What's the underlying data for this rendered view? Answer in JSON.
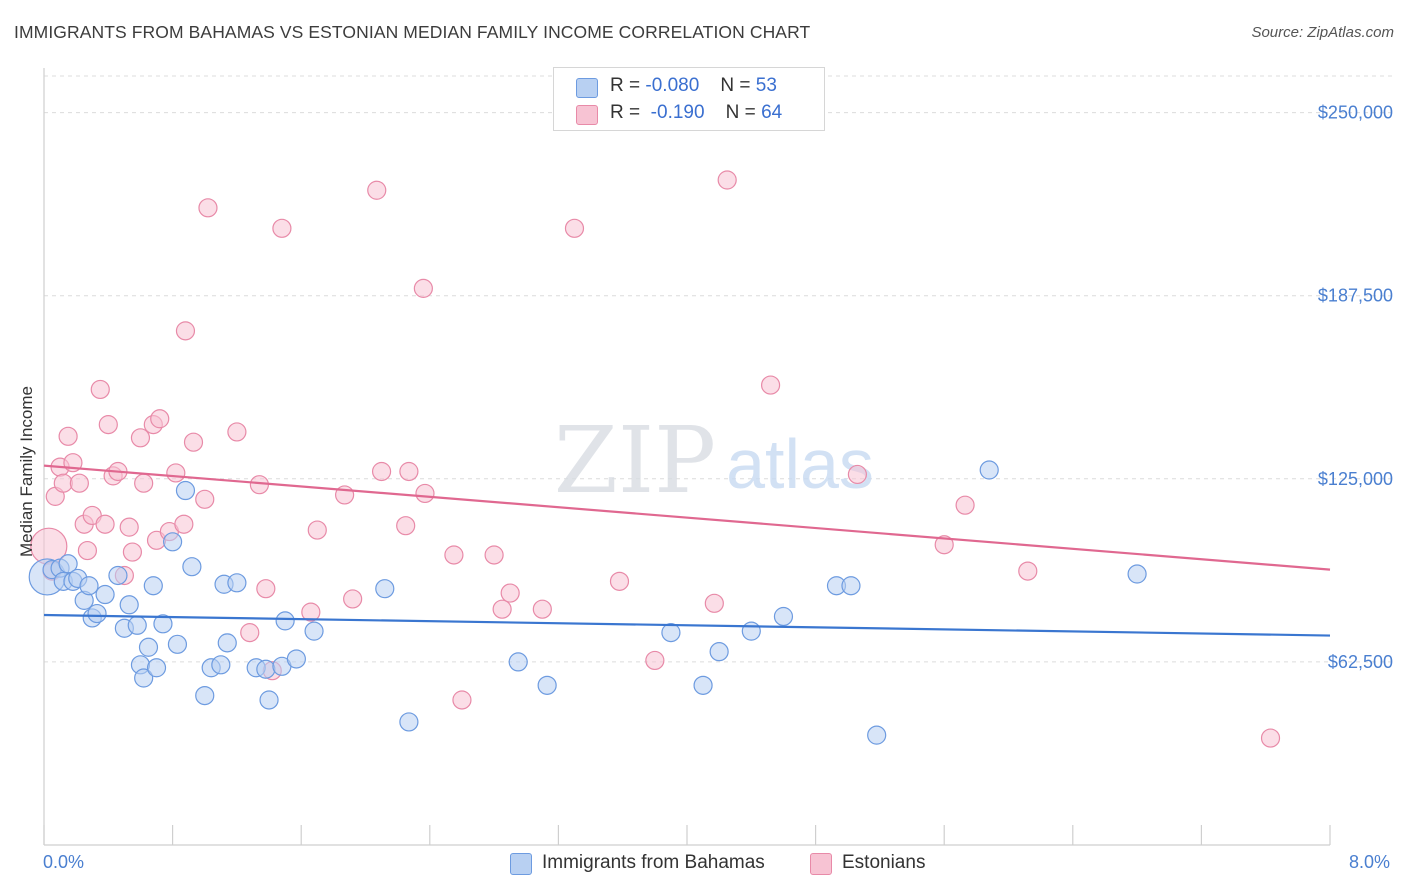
{
  "title": "IMMIGRANTS FROM BAHAMAS VS ESTONIAN MEDIAN FAMILY INCOME CORRELATION CHART",
  "source": "Source: ZipAtlas.com",
  "watermark": {
    "zip": "ZIP",
    "atlas": "atlas"
  },
  "legend": {
    "rows": [
      {
        "r_label": "R =",
        "r_value": "-0.080",
        "n_label": "N =",
        "n_value": "53"
      },
      {
        "r_label": "R =",
        "r_value": " -0.190",
        "n_label": "N =",
        "n_value": "64"
      }
    ]
  },
  "bottom_legend": [
    "Immigrants from Bahamas",
    "Estonians"
  ],
  "colors": {
    "blue_fill": "#b8d0f2",
    "blue_stroke": "#6d9be0",
    "blue_line": "#3a76d0",
    "pink_fill": "#f7c3d3",
    "pink_stroke": "#e88aa8",
    "pink_line": "#e06890",
    "axis_label": "#4a7fd0"
  },
  "chart_data": {
    "type": "scatter",
    "title": "IMMIGRANTS FROM BAHAMAS VS ESTONIAN MEDIAN FAMILY INCOME CORRELATION CHART",
    "xlabel": "",
    "ylabel": "Median Family Income",
    "xlim": [
      0,
      8.0
    ],
    "ylim": [
      0,
      262500
    ],
    "x_tick_labels": [
      "0.0%",
      "8.0%"
    ],
    "y_ticks": [
      62500,
      125000,
      187500,
      250000
    ],
    "y_tick_labels": [
      "$62,500",
      "$125,000",
      "$187,500",
      "$250,000"
    ],
    "grid": "horizontal dashed",
    "legend_position": "top-center",
    "series": [
      {
        "name": "Immigrants from Bahamas",
        "r": -0.08,
        "n": 53,
        "trend": {
          "x0": 0.0,
          "y0": 78500,
          "x1": 8.0,
          "y1": 71500
        },
        "points": [
          [
            0.02,
            91500
          ],
          [
            0.05,
            94000
          ],
          [
            0.1,
            94500
          ],
          [
            0.12,
            90000
          ],
          [
            0.15,
            96000
          ],
          [
            0.18,
            90000
          ],
          [
            0.21,
            91000
          ],
          [
            0.25,
            83500
          ],
          [
            0.28,
            88500
          ],
          [
            0.3,
            77500
          ],
          [
            0.33,
            79000
          ],
          [
            0.38,
            85500
          ],
          [
            0.46,
            92000
          ],
          [
            0.5,
            74000
          ],
          [
            0.53,
            82000
          ],
          [
            0.58,
            75000
          ],
          [
            0.6,
            61500
          ],
          [
            0.62,
            57000
          ],
          [
            0.65,
            67500
          ],
          [
            0.7,
            60500
          ],
          [
            0.68,
            88500
          ],
          [
            0.74,
            75500
          ],
          [
            0.8,
            103500
          ],
          [
            0.83,
            68500
          ],
          [
            0.88,
            121000
          ],
          [
            0.92,
            95000
          ],
          [
            1.0,
            51000
          ],
          [
            1.04,
            60500
          ],
          [
            1.1,
            61500
          ],
          [
            1.12,
            89000
          ],
          [
            1.14,
            69000
          ],
          [
            1.2,
            89500
          ],
          [
            1.32,
            60500
          ],
          [
            1.38,
            60000
          ],
          [
            1.4,
            49500
          ],
          [
            1.48,
            61000
          ],
          [
            1.5,
            76500
          ],
          [
            1.57,
            63500
          ],
          [
            1.68,
            73000
          ],
          [
            2.12,
            87500
          ],
          [
            2.27,
            42000
          ],
          [
            2.95,
            62500
          ],
          [
            3.13,
            54500
          ],
          [
            3.9,
            72500
          ],
          [
            4.1,
            54500
          ],
          [
            4.2,
            66000
          ],
          [
            4.4,
            73000
          ],
          [
            4.6,
            78000
          ],
          [
            4.93,
            88500
          ],
          [
            5.02,
            88500
          ],
          [
            5.18,
            37500
          ],
          [
            5.88,
            128000
          ],
          [
            6.8,
            92500
          ]
        ]
      },
      {
        "name": "Estonians",
        "r": -0.19,
        "n": 64,
        "trend": {
          "x0": 0.0,
          "y0": 129500,
          "x1": 8.0,
          "y1": 94000
        },
        "points": [
          [
            0.03,
            102000
          ],
          [
            0.05,
            93500
          ],
          [
            0.07,
            119000
          ],
          [
            0.1,
            129000
          ],
          [
            0.12,
            123500
          ],
          [
            0.15,
            139500
          ],
          [
            0.18,
            130500
          ],
          [
            0.22,
            123500
          ],
          [
            0.25,
            109500
          ],
          [
            0.27,
            100500
          ],
          [
            0.3,
            112500
          ],
          [
            0.35,
            155500
          ],
          [
            0.38,
            109500
          ],
          [
            0.4,
            143500
          ],
          [
            0.43,
            126000
          ],
          [
            0.46,
            127500
          ],
          [
            0.5,
            92000
          ],
          [
            0.53,
            108500
          ],
          [
            0.55,
            100000
          ],
          [
            0.6,
            139000
          ],
          [
            0.62,
            123500
          ],
          [
            0.68,
            143500
          ],
          [
            0.7,
            104000
          ],
          [
            0.72,
            145500
          ],
          [
            0.78,
            107000
          ],
          [
            0.82,
            127000
          ],
          [
            0.87,
            109500
          ],
          [
            0.88,
            175500
          ],
          [
            0.93,
            137500
          ],
          [
            1.0,
            118000
          ],
          [
            1.02,
            217500
          ],
          [
            1.2,
            141000
          ],
          [
            1.34,
            123000
          ],
          [
            1.38,
            87500
          ],
          [
            1.48,
            210500
          ],
          [
            1.66,
            79500
          ],
          [
            1.7,
            107500
          ],
          [
            1.87,
            119500
          ],
          [
            1.92,
            84000
          ],
          [
            2.07,
            223500
          ],
          [
            2.1,
            127500
          ],
          [
            2.25,
            109000
          ],
          [
            2.36,
            190000
          ],
          [
            2.37,
            120000
          ],
          [
            2.55,
            99000
          ],
          [
            2.8,
            99000
          ],
          [
            2.85,
            80500
          ],
          [
            2.9,
            86000
          ],
          [
            3.1,
            80500
          ],
          [
            3.3,
            210500
          ],
          [
            3.58,
            90000
          ],
          [
            3.8,
            63000
          ],
          [
            4.17,
            82500
          ],
          [
            4.25,
            227000
          ],
          [
            4.52,
            157000
          ],
          [
            5.06,
            126500
          ],
          [
            5.6,
            102500
          ],
          [
            5.73,
            116000
          ],
          [
            6.12,
            93500
          ],
          [
            7.63,
            36500
          ],
          [
            2.27,
            127500
          ],
          [
            1.28,
            72500
          ],
          [
            2.6,
            49500
          ],
          [
            1.42,
            59500
          ]
        ]
      }
    ]
  }
}
